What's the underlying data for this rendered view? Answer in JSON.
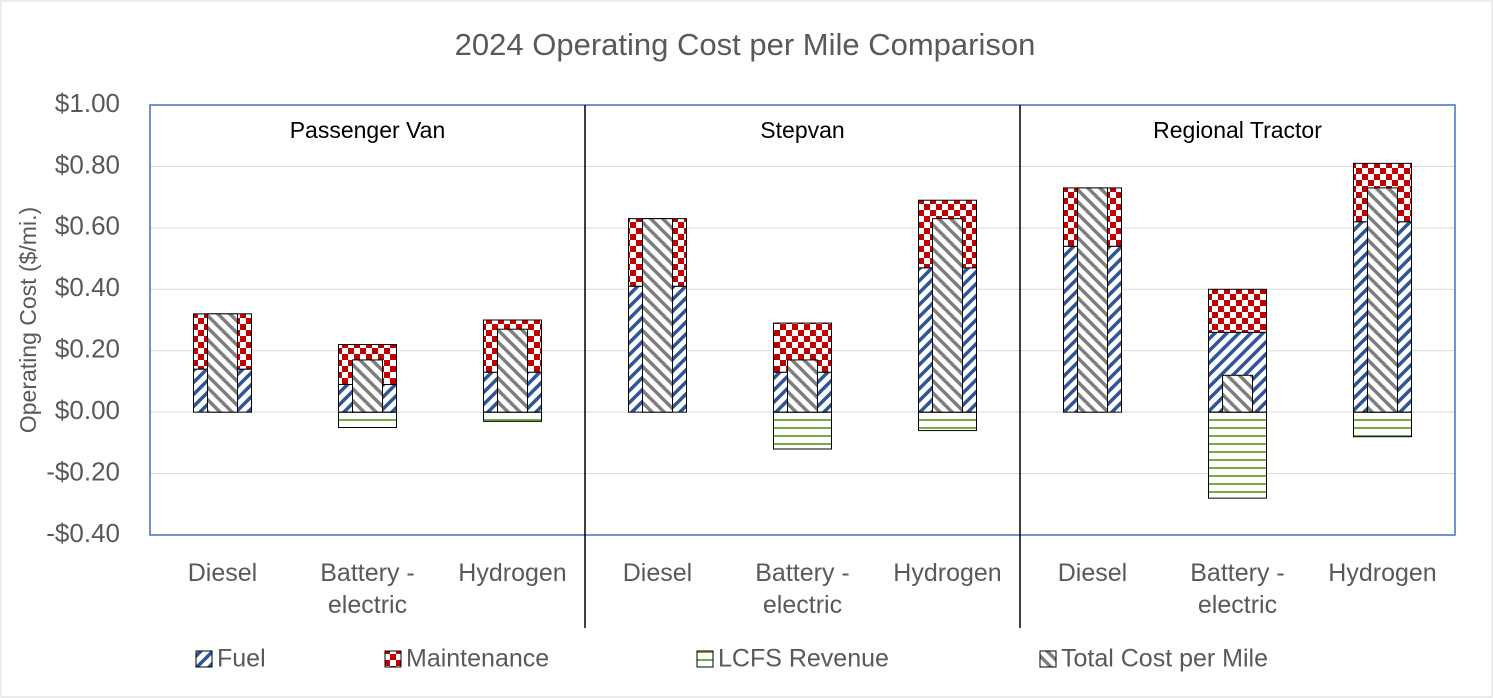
{
  "chart_data": {
    "type": "bar",
    "title": "2024 Operating Cost per Mile Comparison",
    "y_label": "Operating Cost ($/mi.)",
    "groups": [
      "Passenger Van",
      "Stepvan",
      "Regional Tractor"
    ],
    "categories": [
      "Diesel",
      "Battery - electric",
      "Hydrogen",
      "Diesel",
      "Battery - electric",
      "Hydrogen",
      "Diesel",
      "Battery - electric",
      "Hydrogen"
    ],
    "series": [
      {
        "name": "Fuel",
        "color": "#2f5597",
        "values": [
          0.14,
          0.09,
          0.13,
          0.41,
          0.13,
          0.47,
          0.54,
          0.26,
          0.62
        ]
      },
      {
        "name": "Maintenance",
        "color": "#c00000",
        "values": [
          0.18,
          0.13,
          0.17,
          0.22,
          0.16,
          0.22,
          0.19,
          0.14,
          0.19
        ]
      },
      {
        "name": "LCFS Revenue",
        "color": "#70ad47",
        "values": [
          0,
          -0.05,
          -0.03,
          0,
          -0.12,
          -0.06,
          0,
          -0.28,
          -0.08
        ]
      },
      {
        "name": "Total Cost per Mile",
        "color": "#7f7f7f",
        "values": [
          0.32,
          0.17,
          0.27,
          0.63,
          0.17,
          0.63,
          0.73,
          0.12,
          0.73
        ]
      }
    ],
    "ylim": [
      -0.4,
      1.0
    ],
    "yticks": [
      {
        "value": 1.0,
        "label": "$1.00"
      },
      {
        "value": 0.8,
        "label": "$0.80"
      },
      {
        "value": 0.6,
        "label": "$0.60"
      },
      {
        "value": 0.4,
        "label": "$0.40"
      },
      {
        "value": 0.2,
        "label": "$0.20"
      },
      {
        "value": 0,
        "label": "$0.00"
      },
      {
        "value": -0.2,
        "label": "-$0.20"
      },
      {
        "value": -0.4,
        "label": "-$0.40"
      }
    ],
    "grid": true,
    "legend": "bottom"
  }
}
